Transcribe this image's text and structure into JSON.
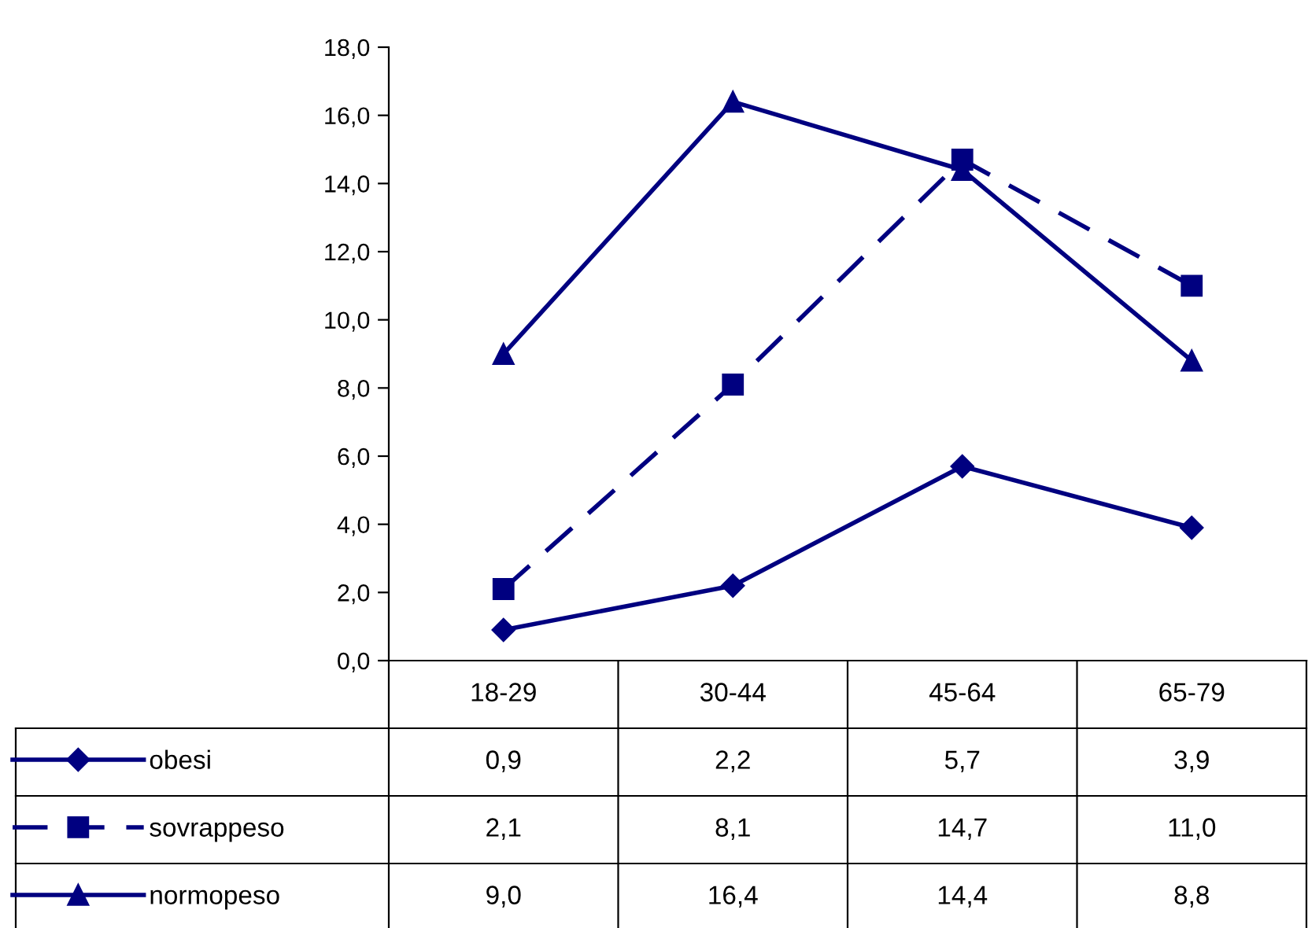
{
  "chart_data": {
    "type": "line",
    "categories": [
      "18-29",
      "30-44",
      "45-64",
      "65-79"
    ],
    "series": [
      {
        "name": "obesi",
        "color": "#000080",
        "marker": "diamond",
        "line_style": "solid",
        "values": [
          0.9,
          2.2,
          5.7,
          3.9
        ],
        "value_labels": [
          "0,9",
          "2,2",
          "5,7",
          "3,9"
        ]
      },
      {
        "name": "sovrappeso",
        "color": "#000080",
        "marker": "square",
        "line_style": "dashed",
        "values": [
          2.1,
          8.1,
          14.7,
          11.0
        ],
        "value_labels": [
          "2,1",
          "8,1",
          "14,7",
          "11,0"
        ]
      },
      {
        "name": "normopeso",
        "color": "#000080",
        "marker": "triangle",
        "line_style": "solid",
        "values": [
          9.0,
          16.4,
          14.4,
          8.8
        ],
        "value_labels": [
          "9,0",
          "16,4",
          "14,4",
          "8,8"
        ]
      }
    ],
    "ylim": [
      0,
      18
    ],
    "yticks": [
      {
        "value": 0,
        "label": "0,0"
      },
      {
        "value": 2,
        "label": "2,0"
      },
      {
        "value": 4,
        "label": "4,0"
      },
      {
        "value": 6,
        "label": "6,0"
      },
      {
        "value": 8,
        "label": "8,0"
      },
      {
        "value": 10,
        "label": "10,0"
      },
      {
        "value": 12,
        "label": "12,0"
      },
      {
        "value": 14,
        "label": "14,0"
      },
      {
        "value": 16,
        "label": "16,0"
      },
      {
        "value": 18,
        "label": "18,0"
      }
    ],
    "grid": false,
    "legend": "bottom"
  }
}
